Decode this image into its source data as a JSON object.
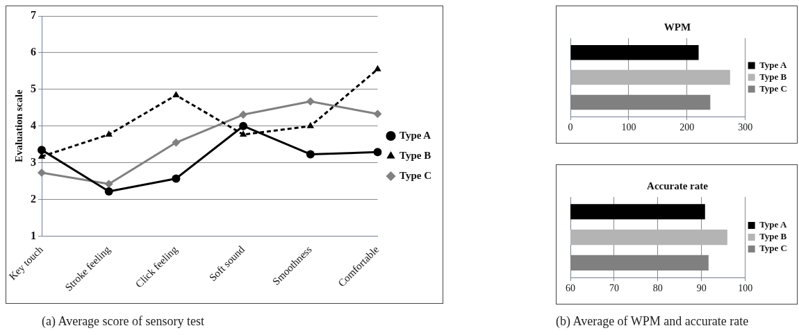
{
  "chart_data": [
    {
      "type": "line",
      "categories": [
        "Key touch",
        "Stroke feeling",
        "Click feeling",
        "Soft sound",
        "Smoothness",
        "Comfortable"
      ],
      "ylabel": "Evaluation scale",
      "ylim": [
        1,
        7
      ],
      "yticks": [
        1,
        2,
        3,
        4,
        5,
        6,
        7
      ],
      "grid": "y",
      "legend": "right",
      "annotations": [
        "(a)    Average score of sensory test"
      ],
      "series": [
        {
          "name": "Type A",
          "color": "#000000",
          "marker": "circle",
          "line_style": "solid",
          "values": [
            3.35,
            2.22,
            2.57,
            4.0,
            3.23,
            3.29
          ]
        },
        {
          "name": "Type B",
          "color": "#000000",
          "marker": "triangle",
          "line_style": "dashed",
          "values": [
            3.17,
            3.77,
            4.84,
            3.77,
            4.0,
            5.55
          ]
        },
        {
          "name": "Type C",
          "color": "#808080",
          "marker": "diamond",
          "line_style": "solid",
          "values": [
            2.73,
            2.42,
            3.55,
            4.31,
            4.67,
            4.33
          ]
        }
      ]
    },
    {
      "type": "bar",
      "orientation": "horizontal",
      "title": "WPM",
      "categories": [
        null
      ],
      "xlim": [
        0,
        300
      ],
      "xticks": [
        0,
        100,
        200,
        300
      ],
      "grid": "x",
      "legend": "right",
      "series": [
        {
          "name": "Type A",
          "color": "#000000",
          "values": [
            220
          ]
        },
        {
          "name": "Type B",
          "color": "#b4b4b4",
          "values": [
            274
          ]
        },
        {
          "name": "Type C",
          "color": "#808080",
          "values": [
            240
          ]
        }
      ]
    },
    {
      "type": "bar",
      "orientation": "horizontal",
      "title": "Accurate rate",
      "categories": [
        null
      ],
      "xlim": [
        60,
        100
      ],
      "xticks": [
        60,
        70,
        80,
        90,
        100
      ],
      "grid": "x",
      "legend": "right",
      "annotations": [
        "(b) Average of WPM and accurate rate"
      ],
      "series": [
        {
          "name": "Type A",
          "color": "#000000",
          "values": [
            90.8
          ]
        },
        {
          "name": "Type B",
          "color": "#b4b4b4",
          "values": [
            95.9
          ]
        },
        {
          "name": "Type C",
          "color": "#808080",
          "values": [
            91.6
          ]
        }
      ]
    }
  ]
}
